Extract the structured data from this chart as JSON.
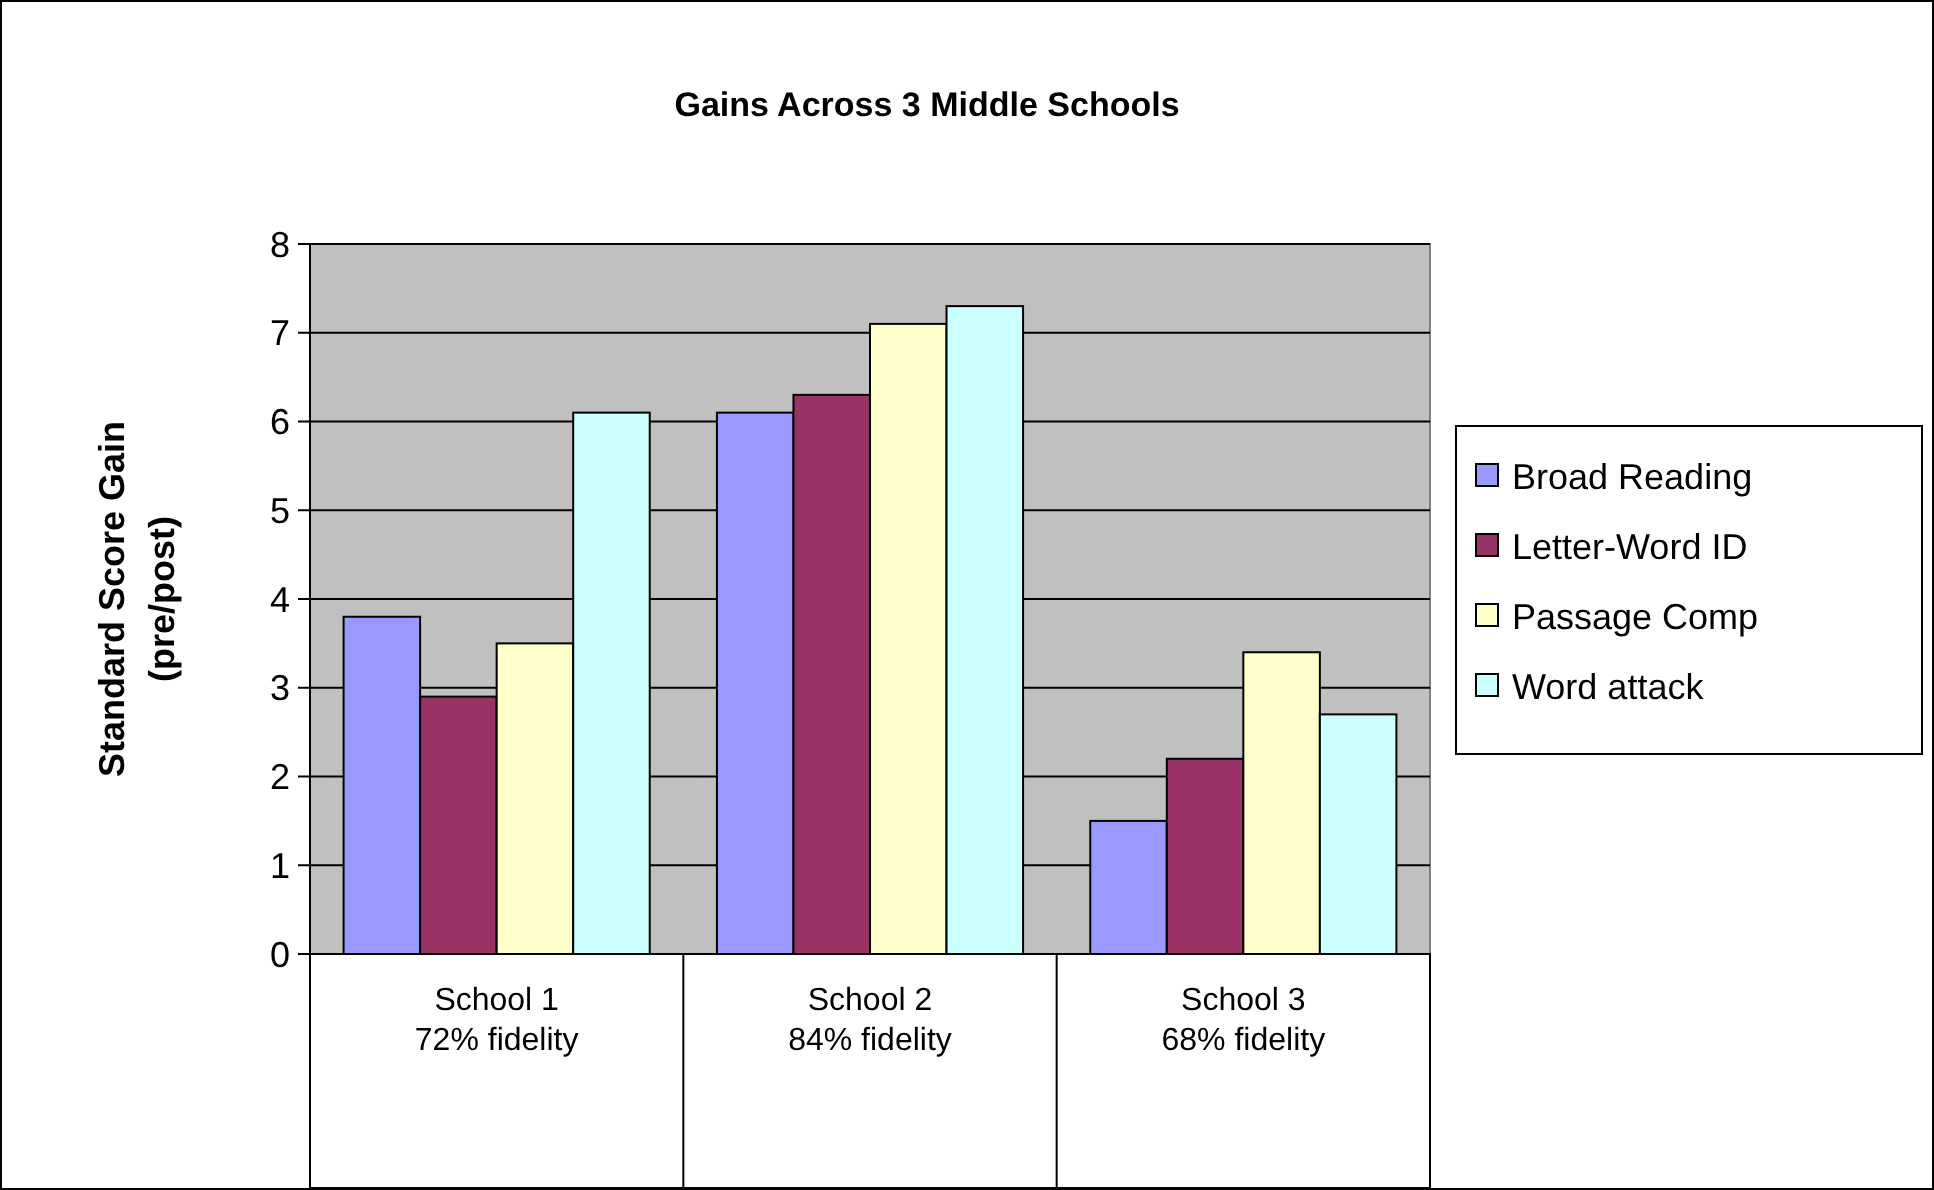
{
  "chart_data": {
    "type": "bar",
    "title": "Gains Across 3 Middle Schools",
    "ylabel": "Standard Score Gain\n(pre/post)",
    "categories": [
      "School 1\n72% fidelity",
      "School 2\n84% fidelity",
      "School 3\n68% fidelity"
    ],
    "series": [
      {
        "name": "Broad Reading",
        "color": "#9999ff",
        "values": [
          3.8,
          6.1,
          1.5
        ]
      },
      {
        "name": "Letter-Word ID",
        "color": "#993366",
        "values": [
          2.9,
          6.3,
          2.2
        ]
      },
      {
        "name": "Passage Comp",
        "color": "#ffffcc",
        "values": [
          3.5,
          7.1,
          3.4
        ]
      },
      {
        "name": "Word attack",
        "color": "#ccffff",
        "values": [
          6.1,
          7.3,
          2.7
        ]
      }
    ],
    "ylim": [
      0,
      8
    ],
    "yticks": [
      0,
      1,
      2,
      3,
      4,
      5,
      6,
      7,
      8
    ],
    "grid": "y",
    "legend": "right"
  }
}
